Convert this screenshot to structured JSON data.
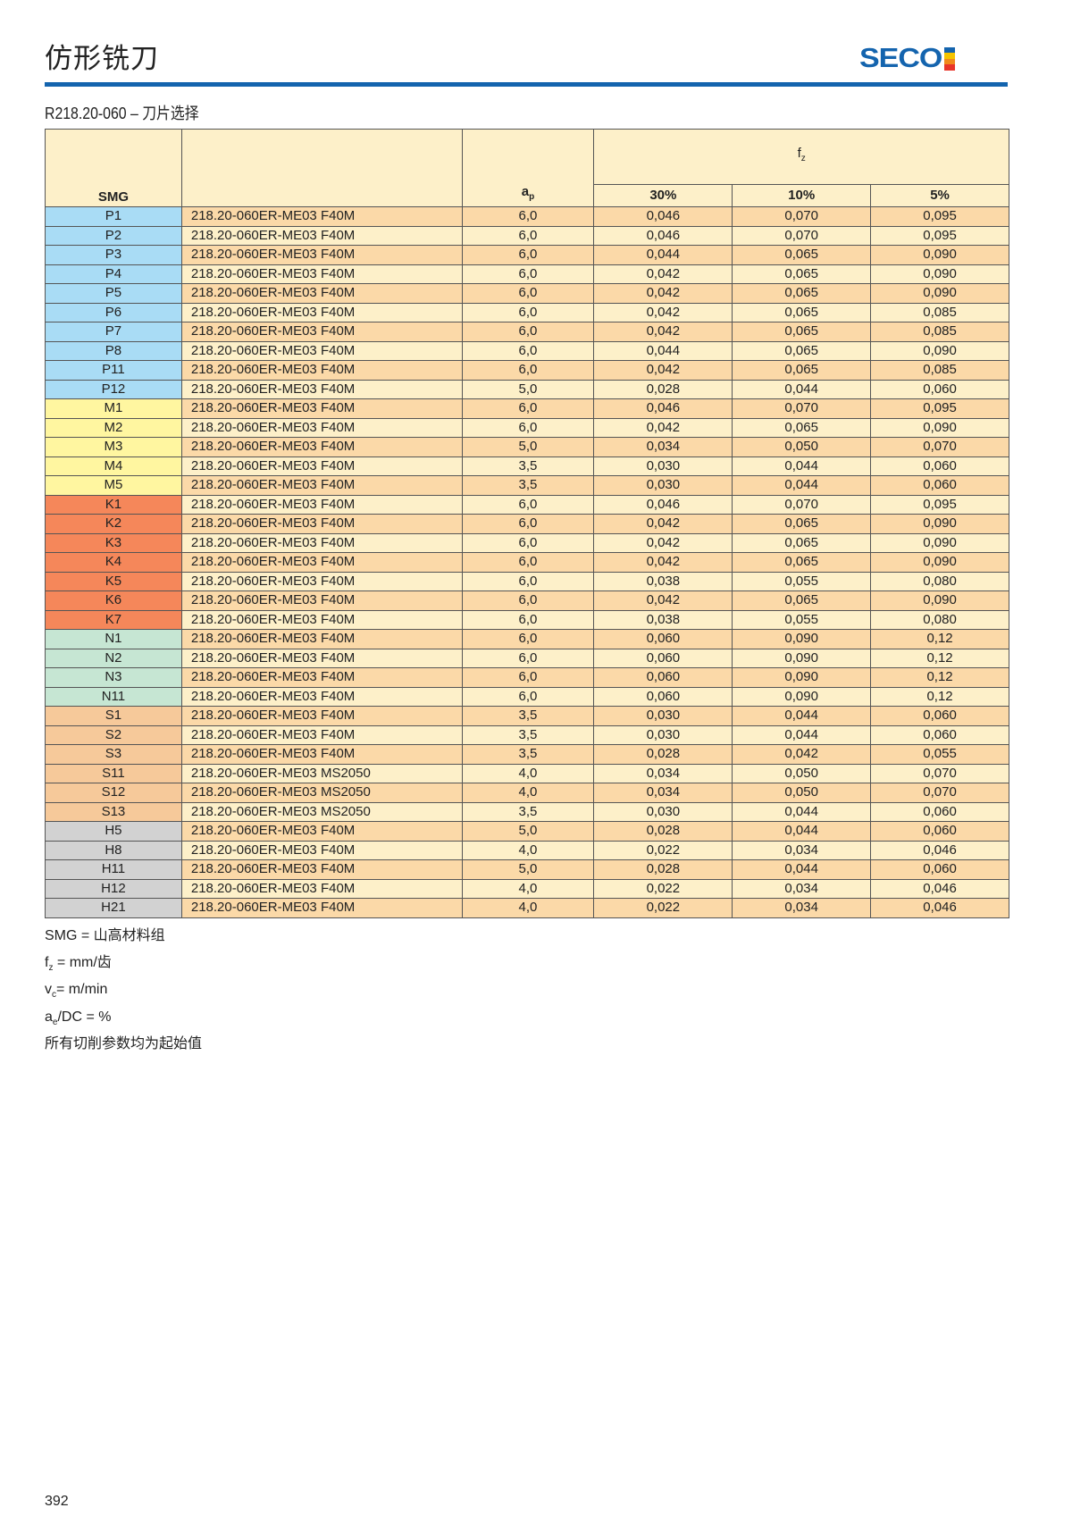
{
  "header": {
    "title": "仿形铣刀",
    "logo": "SECO",
    "subtitle": "R218.20-060 – 刀片选择"
  },
  "colors": {
    "brand": "#1464ae",
    "P": "#a9dcf5",
    "M": "#fff6a0",
    "K": "#f5875a",
    "N": "#c6e6d3",
    "S": "#f6c99a",
    "H": "#d2d2d2"
  },
  "table": {
    "headers": {
      "smg": "SMG",
      "desc": "",
      "ap": "a",
      "ap_sub": "p",
      "fz": "f",
      "fz_sub": "z",
      "c30": "30%",
      "c10": "10%",
      "c5": "5%"
    },
    "rows": [
      [
        "P1",
        "218.20-060ER-ME03 F40M",
        "6,0",
        "0,046",
        "0,070",
        "0,095"
      ],
      [
        "P2",
        "218.20-060ER-ME03 F40M",
        "6,0",
        "0,046",
        "0,070",
        "0,095"
      ],
      [
        "P3",
        "218.20-060ER-ME03 F40M",
        "6,0",
        "0,044",
        "0,065",
        "0,090"
      ],
      [
        "P4",
        "218.20-060ER-ME03 F40M",
        "6,0",
        "0,042",
        "0,065",
        "0,090"
      ],
      [
        "P5",
        "218.20-060ER-ME03 F40M",
        "6,0",
        "0,042",
        "0,065",
        "0,090"
      ],
      [
        "P6",
        "218.20-060ER-ME03 F40M",
        "6,0",
        "0,042",
        "0,065",
        "0,085"
      ],
      [
        "P7",
        "218.20-060ER-ME03 F40M",
        "6,0",
        "0,042",
        "0,065",
        "0,085"
      ],
      [
        "P8",
        "218.20-060ER-ME03 F40M",
        "6,0",
        "0,044",
        "0,065",
        "0,090"
      ],
      [
        "P11",
        "218.20-060ER-ME03 F40M",
        "6,0",
        "0,042",
        "0,065",
        "0,085"
      ],
      [
        "P12",
        "218.20-060ER-ME03 F40M",
        "5,0",
        "0,028",
        "0,044",
        "0,060"
      ],
      [
        "M1",
        "218.20-060ER-ME03 F40M",
        "6,0",
        "0,046",
        "0,070",
        "0,095"
      ],
      [
        "M2",
        "218.20-060ER-ME03 F40M",
        "6,0",
        "0,042",
        "0,065",
        "0,090"
      ],
      [
        "M3",
        "218.20-060ER-ME03 F40M",
        "5,0",
        "0,034",
        "0,050",
        "0,070"
      ],
      [
        "M4",
        "218.20-060ER-ME03 F40M",
        "3,5",
        "0,030",
        "0,044",
        "0,060"
      ],
      [
        "M5",
        "218.20-060ER-ME03 F40M",
        "3,5",
        "0,030",
        "0,044",
        "0,060"
      ],
      [
        "K1",
        "218.20-060ER-ME03 F40M",
        "6,0",
        "0,046",
        "0,070",
        "0,095"
      ],
      [
        "K2",
        "218.20-060ER-ME03 F40M",
        "6,0",
        "0,042",
        "0,065",
        "0,090"
      ],
      [
        "K3",
        "218.20-060ER-ME03 F40M",
        "6,0",
        "0,042",
        "0,065",
        "0,090"
      ],
      [
        "K4",
        "218.20-060ER-ME03 F40M",
        "6,0",
        "0,042",
        "0,065",
        "0,090"
      ],
      [
        "K5",
        "218.20-060ER-ME03 F40M",
        "6,0",
        "0,038",
        "0,055",
        "0,080"
      ],
      [
        "K6",
        "218.20-060ER-ME03 F40M",
        "6,0",
        "0,042",
        "0,065",
        "0,090"
      ],
      [
        "K7",
        "218.20-060ER-ME03 F40M",
        "6,0",
        "0,038",
        "0,055",
        "0,080"
      ],
      [
        "N1",
        "218.20-060ER-ME03 F40M",
        "6,0",
        "0,060",
        "0,090",
        "0,12"
      ],
      [
        "N2",
        "218.20-060ER-ME03 F40M",
        "6,0",
        "0,060",
        "0,090",
        "0,12"
      ],
      [
        "N3",
        "218.20-060ER-ME03 F40M",
        "6,0",
        "0,060",
        "0,090",
        "0,12"
      ],
      [
        "N11",
        "218.20-060ER-ME03 F40M",
        "6,0",
        "0,060",
        "0,090",
        "0,12"
      ],
      [
        "S1",
        "218.20-060ER-ME03 F40M",
        "3,5",
        "0,030",
        "0,044",
        "0,060"
      ],
      [
        "S2",
        "218.20-060ER-ME03 F40M",
        "3,5",
        "0,030",
        "0,044",
        "0,060"
      ],
      [
        "S3",
        "218.20-060ER-ME03 F40M",
        "3,5",
        "0,028",
        "0,042",
        "0,055"
      ],
      [
        "S11",
        "218.20-060ER-ME03 MS2050",
        "4,0",
        "0,034",
        "0,050",
        "0,070"
      ],
      [
        "S12",
        "218.20-060ER-ME03 MS2050",
        "4,0",
        "0,034",
        "0,050",
        "0,070"
      ],
      [
        "S13",
        "218.20-060ER-ME03 MS2050",
        "3,5",
        "0,030",
        "0,044",
        "0,060"
      ],
      [
        "H5",
        "218.20-060ER-ME03 F40M",
        "5,0",
        "0,028",
        "0,044",
        "0,060"
      ],
      [
        "H8",
        "218.20-060ER-ME03 F40M",
        "4,0",
        "0,022",
        "0,034",
        "0,046"
      ],
      [
        "H11",
        "218.20-060ER-ME03 F40M",
        "5,0",
        "0,028",
        "0,044",
        "0,060"
      ],
      [
        "H12",
        "218.20-060ER-ME03 F40M",
        "4,0",
        "0,022",
        "0,034",
        "0,046"
      ],
      [
        "H21",
        "218.20-060ER-ME03 F40M",
        "4,0",
        "0,022",
        "0,034",
        "0,046"
      ]
    ]
  },
  "notes": [
    {
      "main": "SMG = 山高材料组",
      "sub": "",
      "rest": ""
    },
    {
      "main": "f",
      "sub": "z",
      "rest": " = mm/齿"
    },
    {
      "main": "v",
      "sub": "c",
      "rest": "= m/min"
    },
    {
      "main": "a",
      "sub": "e",
      "rest": "/DC = %"
    },
    {
      "main": "所有切削参数均为起始值",
      "sub": "",
      "rest": ""
    }
  ],
  "page_number": "392"
}
